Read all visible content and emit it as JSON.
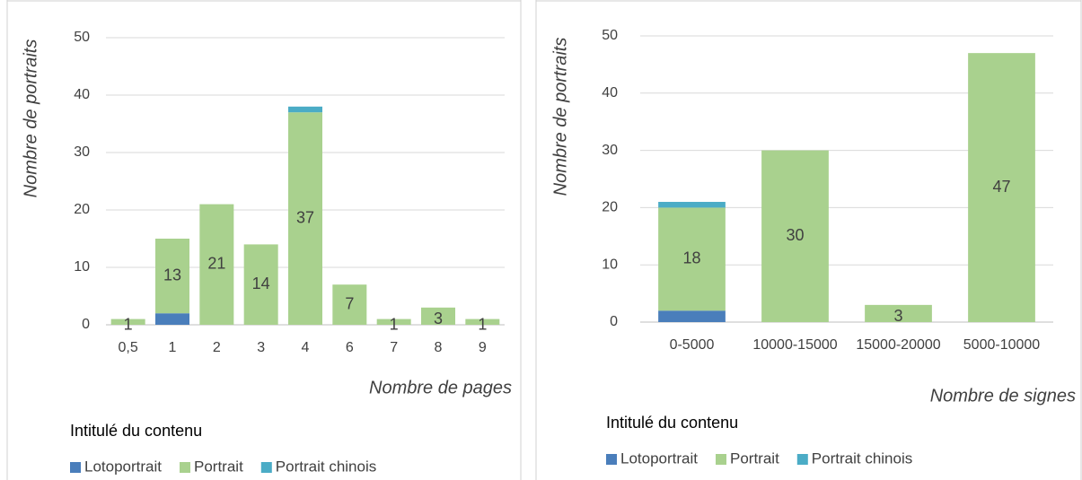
{
  "chart_data": [
    {
      "type": "stacked_bar",
      "y_label": "Nombre de portraits",
      "x_label": "Nombre de pages",
      "legend_title": "Intitulé du contenu",
      "categories": [
        "0,5",
        "1",
        "2",
        "3",
        "4",
        "6",
        "7",
        "8",
        "9"
      ],
      "series": [
        {
          "name": "Lotoportrait",
          "color": "#4a7ebb",
          "values": [
            0,
            2,
            0,
            0,
            0,
            0,
            0,
            0,
            0
          ]
        },
        {
          "name": "Portrait",
          "color": "#a9d18e",
          "values": [
            1,
            13,
            21,
            14,
            37,
            7,
            1,
            3,
            1
          ],
          "labels": true
        },
        {
          "name": "Portrait chinois",
          "color": "#4bacc6",
          "values": [
            0,
            0,
            0,
            0,
            1,
            0,
            0,
            0,
            0
          ]
        }
      ],
      "ylim": [
        0,
        50
      ],
      "yticks": [
        0,
        10,
        20,
        30,
        40,
        50
      ],
      "grid": true,
      "legend": "bottom"
    },
    {
      "type": "stacked_bar",
      "y_label": "Nombre de portraits",
      "x_label": "Nombre de signes",
      "legend_title": "Intitulé du contenu",
      "categories": [
        "0-5000",
        "10000-15000",
        "15000-20000",
        "5000-10000"
      ],
      "series": [
        {
          "name": "Lotoportrait",
          "color": "#4a7ebb",
          "values": [
            2,
            0,
            0,
            0
          ]
        },
        {
          "name": "Portrait",
          "color": "#a9d18e",
          "values": [
            18,
            30,
            3,
            47
          ],
          "labels": true
        },
        {
          "name": "Portrait chinois",
          "color": "#4bacc6",
          "values": [
            1,
            0,
            0,
            0
          ]
        }
      ],
      "ylim": [
        0,
        50
      ],
      "yticks": [
        0,
        10,
        20,
        30,
        40,
        50
      ],
      "grid": true,
      "legend": "bottom"
    }
  ]
}
